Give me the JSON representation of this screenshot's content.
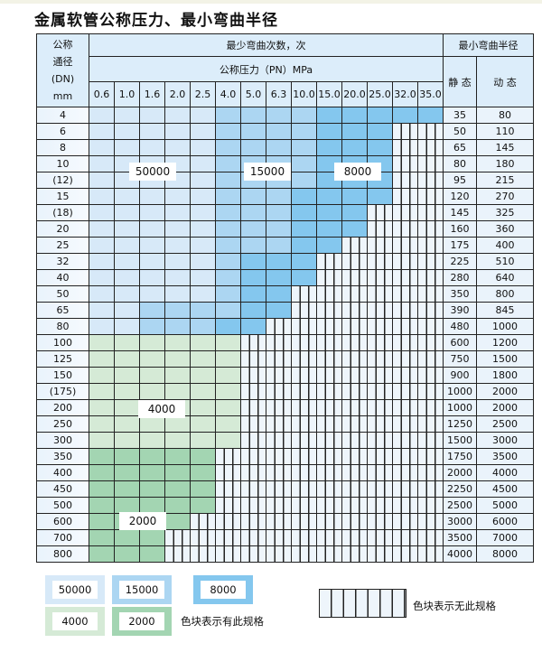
{
  "title": "金属软管公称压力、最小弯曲半径",
  "header": {
    "dn_label": [
      "公称",
      "通径",
      "(DN)",
      "mm"
    ],
    "cycles_label": "最少弯曲次数，次",
    "pressure_label": "公称压力（PN）MPa",
    "radius_label": "最小弯曲半径",
    "static_label": "静 态",
    "dynamic_label": "动 态"
  },
  "pressures": [
    "0.6",
    "1.0",
    "1.6",
    "2.0",
    "2.5",
    "4.0",
    "5.0",
    "6.3",
    "10.0",
    "15.0",
    "20.0",
    "25.0",
    "32.0",
    "35.0"
  ],
  "rows": [
    {
      "dn": "4",
      "static": "35",
      "dynamic": "80",
      "cells": "L L L L L M M M M D D D D D"
    },
    {
      "dn": "6",
      "static": "50",
      "dynamic": "110",
      "cells": "L L L L L M M M M D D D H H"
    },
    {
      "dn": "8",
      "static": "65",
      "dynamic": "145",
      "cells": "L L L L L M M M M D D D H H"
    },
    {
      "dn": "10",
      "static": "80",
      "dynamic": "180",
      "cells": "L L L L L M M M M D D D H H"
    },
    {
      "dn": "(12)",
      "static": "95",
      "dynamic": "215",
      "cells": "L L L L L M M M M D D D H H"
    },
    {
      "dn": "15",
      "static": "120",
      "dynamic": "270",
      "cells": "L L L L L M M M D D D D H H"
    },
    {
      "dn": "(18)",
      "static": "145",
      "dynamic": "325",
      "cells": "L L L L L M M M D D D H H H"
    },
    {
      "dn": "20",
      "static": "160",
      "dynamic": "360",
      "cells": "L L L L L M M M D D D H H H"
    },
    {
      "dn": "25",
      "static": "175",
      "dynamic": "400",
      "cells": "L L L L L M M M D D H H H H"
    },
    {
      "dn": "32",
      "static": "225",
      "dynamic": "510",
      "cells": "L L L L L M D D D H H H H H"
    },
    {
      "dn": "40",
      "static": "280",
      "dynamic": "640",
      "cells": "L L L L L M D D D H H H H H"
    },
    {
      "dn": "50",
      "static": "350",
      "dynamic": "800",
      "cells": "L L L L L M D D H H H H H H"
    },
    {
      "dn": "65",
      "static": "390",
      "dynamic": "845",
      "cells": "L L M M M M D D H H H H H H"
    },
    {
      "dn": "80",
      "static": "480",
      "dynamic": "1000",
      "cells": "L L M M M D D H H H H H H H"
    },
    {
      "dn": "100",
      "static": "600",
      "dynamic": "1200",
      "cells": "G1 G1 G1 G1 G1 G1 H H H H H H H H"
    },
    {
      "dn": "125",
      "static": "750",
      "dynamic": "1500",
      "cells": "G1 G1 G1 G1 G1 G1 H H H H H H H H"
    },
    {
      "dn": "150",
      "static": "900",
      "dynamic": "1800",
      "cells": "G1 G1 G1 G1 G1 G1 H H H H H H H H"
    },
    {
      "dn": "(175)",
      "static": "1000",
      "dynamic": "2000",
      "cells": "G1 G1 G1 G1 G1 G1 H H H H H H H H"
    },
    {
      "dn": "200",
      "static": "1000",
      "dynamic": "2000",
      "cells": "G1 G1 G1 G1 G1 G1 H H H H H H H H"
    },
    {
      "dn": "250",
      "static": "1250",
      "dynamic": "2500",
      "cells": "G1 G1 G1 G1 G1 G1 H H H H H H H H"
    },
    {
      "dn": "300",
      "static": "1500",
      "dynamic": "3000",
      "cells": "G1 G1 G1 G1 G1 G1 H H H H H H H H"
    },
    {
      "dn": "350",
      "static": "1750",
      "dynamic": "3500",
      "cells": "G2 G2 G2 G2 G2 H H H H H H H H H"
    },
    {
      "dn": "400",
      "static": "2000",
      "dynamic": "4000",
      "cells": "G2 G2 G2 G2 G2 H H H H H H H H H"
    },
    {
      "dn": "450",
      "static": "2250",
      "dynamic": "4500",
      "cells": "G2 G2 G2 G2 G2 H H H H H H H H H"
    },
    {
      "dn": "500",
      "static": "2500",
      "dynamic": "5000",
      "cells": "G2 G2 G2 G2 G2 H H H H H H H H H"
    },
    {
      "dn": "600",
      "static": "3000",
      "dynamic": "6000",
      "cells": "G2 G2 G2 G2 H H H H H H H H H H"
    },
    {
      "dn": "700",
      "static": "3500",
      "dynamic": "7000",
      "cells": "G2 G2 G2 H H H H H H H H H H H"
    },
    {
      "dn": "800",
      "static": "4000",
      "dynamic": "8000",
      "cells": "G2 G2 G2 H H H H H H H H H H H"
    }
  ],
  "region_labels": {
    "L": "50000",
    "M": "15000",
    "D": "8000",
    "G1": "4000",
    "G2": "2000"
  },
  "colors": {
    "L": "#d7e9f8",
    "M": "#acd6f2",
    "D": "#84c7ee",
    "G1": "#d5ead6",
    "G2": "#a3d5b2",
    "hatch": "#eef5fb"
  },
  "legend": {
    "items": [
      "50000",
      "15000",
      "8000",
      "4000",
      "2000"
    ],
    "available_text": "色块表示有此规格",
    "unavailable_text": "色块表示无此规格"
  }
}
